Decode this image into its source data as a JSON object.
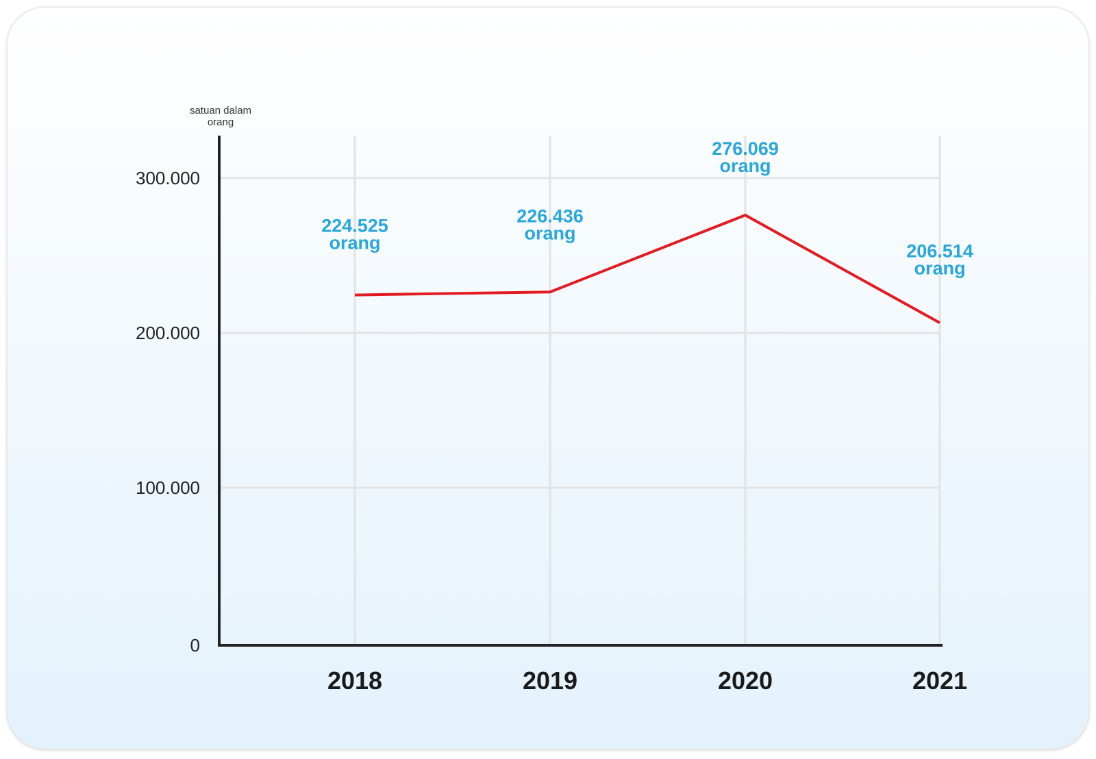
{
  "chart_data": {
    "type": "line",
    "unit_label_lines": [
      "satuan dalam",
      "orang"
    ],
    "categories": [
      "2018",
      "2019",
      "2020",
      "2021"
    ],
    "series": [
      {
        "values": [
          224525,
          226436,
          276069,
          206514
        ]
      }
    ],
    "data_labels": [
      {
        "value": "224.525",
        "unit": "orang"
      },
      {
        "value": "226.436",
        "unit": "orang"
      },
      {
        "value": "276.069",
        "unit": "orang"
      },
      {
        "value": "206.514",
        "unit": "orang"
      }
    ],
    "y_ticks": [
      {
        "value": 0,
        "label": "0"
      },
      {
        "value": 100000,
        "label": "100.000"
      },
      {
        "value": 200000,
        "label": "200.000"
      },
      {
        "value": 300000,
        "label": "300.000"
      }
    ],
    "ylim": [
      0,
      325000
    ],
    "grid": true,
    "line_color": "#e31b23",
    "label_color": "#29a6dc",
    "grid_color": "#e3e3e3",
    "axis_color": "#222222"
  }
}
